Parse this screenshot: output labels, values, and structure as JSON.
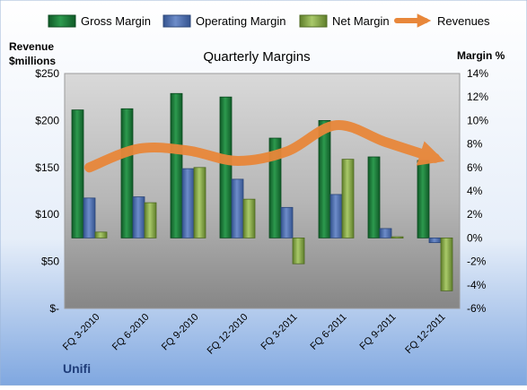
{
  "chart_data": {
    "type": "bar",
    "title": "Quarterly Margins",
    "left_axis_label": [
      "Revenue",
      "$millions"
    ],
    "right_axis_label": "Margin %",
    "categories": [
      "FQ 3-2010",
      "FQ 6-2010",
      "FQ 9-2010",
      "FQ 12-2010",
      "FQ 3-2011",
      "FQ 6-2011",
      "FQ 9-2011",
      "FQ 12-2011"
    ],
    "left_ticks": [
      "$-",
      "$50",
      "$100",
      "$150",
      "$200",
      "$250"
    ],
    "left_ylim": [
      0,
      250
    ],
    "right_ticks": [
      "-6%",
      "-4%",
      "-2%",
      "0%",
      "2%",
      "4%",
      "6%",
      "8%",
      "10%",
      "12%",
      "14%"
    ],
    "right_ylim": [
      -6,
      14
    ],
    "series": [
      {
        "name": "Gross Margin",
        "axis": "right",
        "color": "#1e7b3c",
        "values": [
          10.9,
          11.0,
          12.3,
          12.0,
          8.5,
          10.0,
          6.9,
          6.6
        ]
      },
      {
        "name": "Operating Margin",
        "axis": "right",
        "color": "#4f6fb3",
        "values": [
          3.4,
          3.5,
          5.9,
          5.0,
          2.6,
          3.7,
          0.8,
          -0.4
        ]
      },
      {
        "name": "Net Margin",
        "axis": "right",
        "color": "#8db04a",
        "values": [
          0.5,
          3.0,
          6.0,
          3.3,
          -2.2,
          6.7,
          0.1,
          -4.5
        ]
      },
      {
        "name": "Revenues",
        "axis": "left",
        "type": "line",
        "color": "#e8873a",
        "values": [
          150,
          170,
          168,
          157,
          167,
          195,
          177,
          160
        ]
      }
    ],
    "legend_position": "top",
    "grid": false,
    "footer": "Unifi",
    "colors": {
      "plot_top": "#d2d2d2",
      "plot_bottom": "#8a8a8a",
      "page_top": "#ffffff",
      "page_bottom": "#7fa7e0"
    }
  }
}
